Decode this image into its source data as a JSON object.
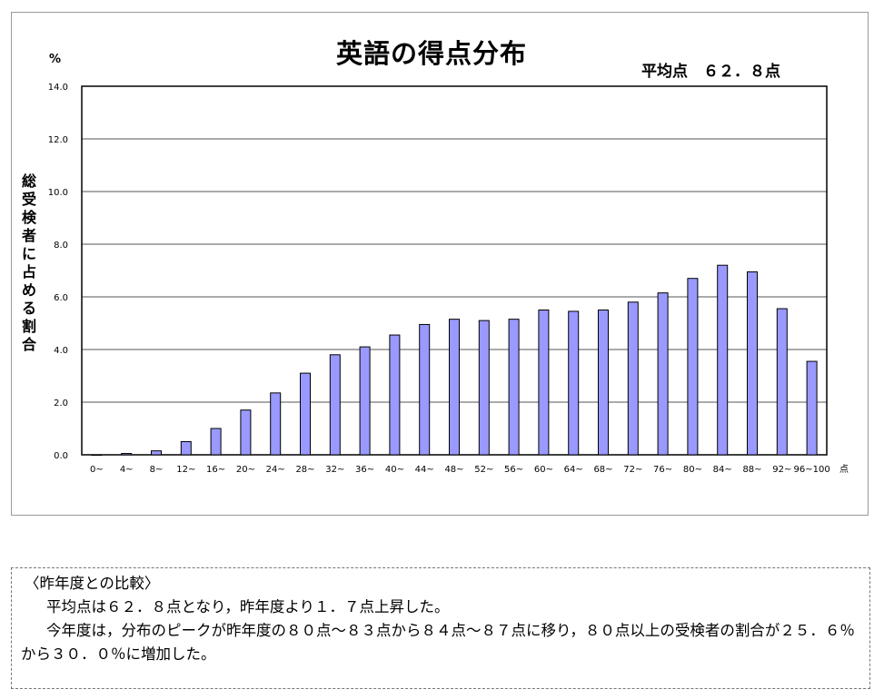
{
  "chart_data": {
    "type": "bar",
    "title": "英語の得点分布",
    "annotation": "平均点　６２．８点",
    "ylabel_unit": "%",
    "ylabel": "総受検者に占める割合",
    "xlabel_suffix": "点",
    "ylim": [
      0,
      14
    ],
    "yticks": [
      "0.0",
      "2.0",
      "4.0",
      "6.0",
      "8.0",
      "10.0",
      "12.0",
      "14.0"
    ],
    "grid": true,
    "bar_color": "#9999ff",
    "categories": [
      "0~",
      "4~",
      "8~",
      "12~",
      "16~",
      "20~",
      "24~",
      "28~",
      "32~",
      "36~",
      "40~",
      "44~",
      "48~",
      "52~",
      "56~",
      "60~",
      "64~",
      "68~",
      "72~",
      "76~",
      "80~",
      "84~",
      "88~",
      "92~",
      "96~100"
    ],
    "values": [
      0.0,
      0.05,
      0.15,
      0.5,
      1.0,
      1.7,
      2.35,
      3.1,
      3.8,
      4.1,
      4.55,
      4.95,
      5.15,
      5.1,
      5.15,
      5.5,
      5.45,
      5.5,
      5.8,
      6.15,
      6.7,
      7.2,
      6.95,
      5.55,
      3.55
    ]
  },
  "comment": {
    "heading": "〈昨年度との比較〉",
    "line1": "平均点は６２．８点となり，昨年度より１．７点上昇した。",
    "line2": "今年度は，分布のピークが昨年度の８０点～８３点から８４点～８７点に移り，８０点以上の受検者の割合が２５．６％から３０．０％に増加した。"
  }
}
